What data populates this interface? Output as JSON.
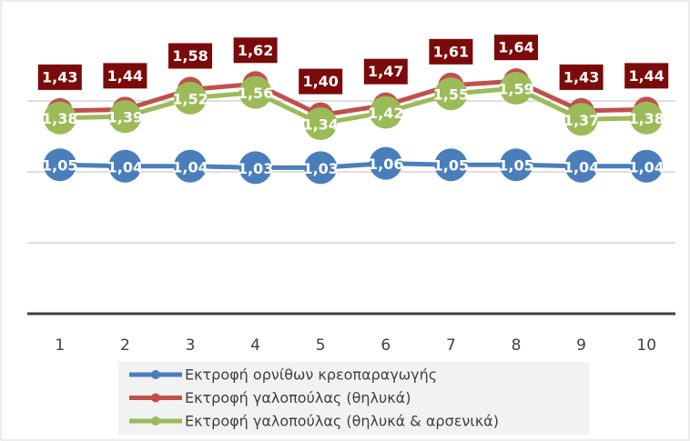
{
  "chart_data": {
    "type": "line",
    "categories": [
      "1",
      "2",
      "3",
      "4",
      "5",
      "6",
      "7",
      "8",
      "9",
      "10"
    ],
    "series": [
      {
        "name": "Εκτροφή ορνίθων κρεοπαραγωγής",
        "color": "#4a7ebb",
        "values": [
          1.05,
          1.04,
          1.04,
          1.03,
          1.03,
          1.06,
          1.05,
          1.05,
          1.04,
          1.04
        ],
        "value_labels": [
          "1,05",
          "1,04",
          "1,04",
          "1,03",
          "1,03",
          "1,06",
          "1,05",
          "1,05",
          "1,04",
          "1,04"
        ]
      },
      {
        "name": "Εκτροφή γαλοπούλας (θηλυκά)",
        "color": "#c0504d",
        "values": [
          1.43,
          1.44,
          1.58,
          1.62,
          1.4,
          1.47,
          1.61,
          1.64,
          1.43,
          1.44
        ],
        "value_labels": [
          "1,43",
          "1,44",
          "1,58",
          "1,62",
          "1,40",
          "1,47",
          "1,61",
          "1,64",
          "1,43",
          "1,44"
        ]
      },
      {
        "name": "Εκτροφή γαλοπούλας (θηλυκά & αρσενικά)",
        "color": "#9bbb59",
        "values": [
          1.38,
          1.39,
          1.52,
          1.56,
          1.34,
          1.42,
          1.55,
          1.59,
          1.37,
          1.38
        ],
        "value_labels": [
          "1,38",
          "1,39",
          "1,52",
          "1,56",
          "1,34",
          "1,42",
          "1,55",
          "1,59",
          "1,37",
          "1,38"
        ]
      }
    ],
    "ylim": [
      0,
      2
    ],
    "yticks": [
      0,
      0.5,
      1,
      1.5
    ],
    "grid": true,
    "legend": "bottom"
  }
}
